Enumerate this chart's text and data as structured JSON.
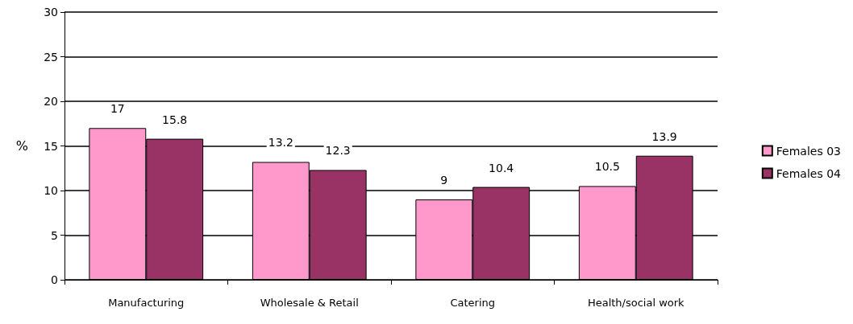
{
  "chart_data": {
    "type": "bar",
    "ylabel": "%",
    "categories": [
      "Manufacturing",
      "Wholesale & Retail",
      "Catering",
      "Health/social work"
    ],
    "series": [
      {
        "name": "Females 03",
        "color": "#ff99cc",
        "values": [
          17,
          13.2,
          9,
          10.5
        ]
      },
      {
        "name": "Females 04",
        "color": "#993366",
        "values": [
          15.8,
          12.3,
          10.4,
          13.9
        ]
      }
    ],
    "ylim": [
      0,
      30
    ],
    "yticks": [
      0,
      5,
      10,
      15,
      20,
      25,
      30
    ],
    "grid": "y",
    "legend": "right",
    "data_labels": true
  }
}
